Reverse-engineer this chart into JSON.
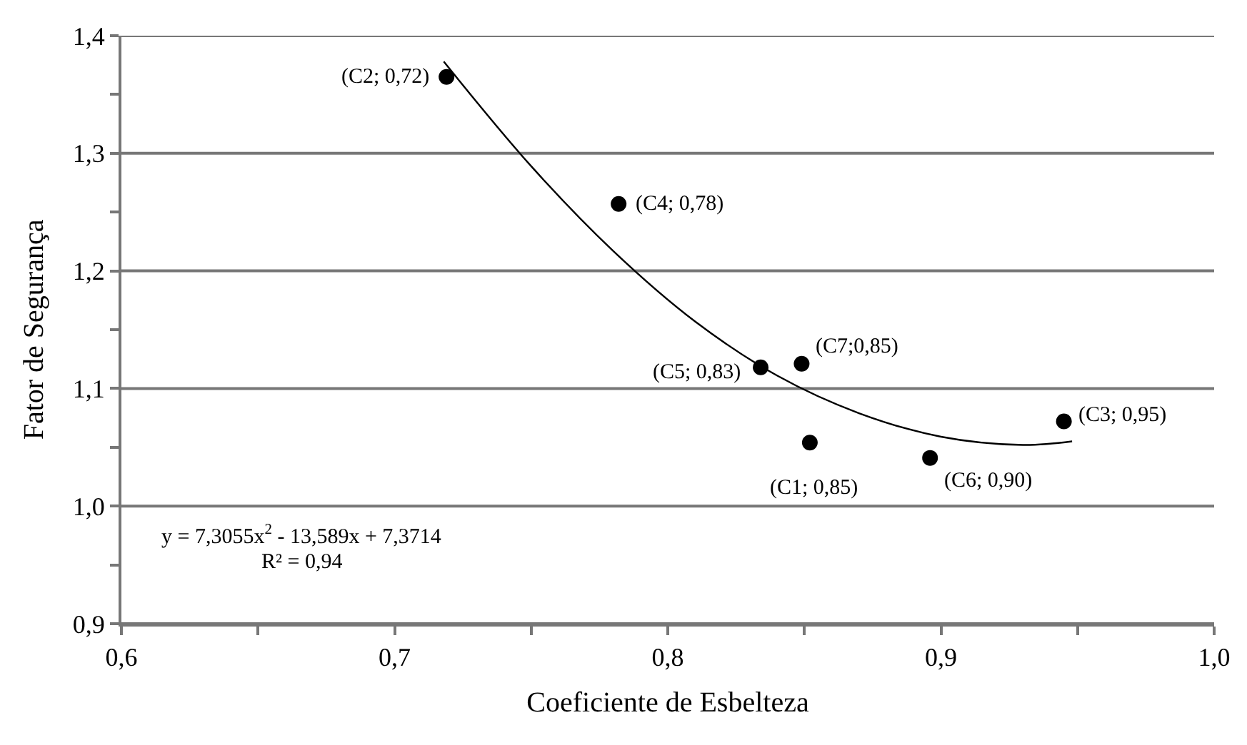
{
  "chart_data": {
    "type": "scatter",
    "xlabel": "Coeficiente de Esbelteza",
    "ylabel": "Fator de Segurança",
    "xlim": [
      0.6,
      1.0
    ],
    "ylim": [
      0.9,
      1.4
    ],
    "xticks": [
      {
        "value": 0.6,
        "label": "0,6"
      },
      {
        "value": 0.65,
        "label": null
      },
      {
        "value": 0.7,
        "label": "0,7"
      },
      {
        "value": 0.75,
        "label": null
      },
      {
        "value": 0.8,
        "label": "0,8"
      },
      {
        "value": 0.85,
        "label": null
      },
      {
        "value": 0.9,
        "label": "0,9"
      },
      {
        "value": 0.95,
        "label": null
      },
      {
        "value": 1.0,
        "label": "1,0"
      }
    ],
    "yticks": [
      {
        "value": 0.9,
        "label": "0,9"
      },
      {
        "value": 0.95,
        "label": null
      },
      {
        "value": 1.0,
        "label": "1,0"
      },
      {
        "value": 1.05,
        "label": null
      },
      {
        "value": 1.1,
        "label": "1,1"
      },
      {
        "value": 1.15,
        "label": null
      },
      {
        "value": 1.2,
        "label": "1,2"
      },
      {
        "value": 1.25,
        "label": null
      },
      {
        "value": 1.3,
        "label": "1,3"
      },
      {
        "value": 1.35,
        "label": null
      },
      {
        "value": 1.4,
        "label": "1,4"
      }
    ],
    "grid": "y",
    "series": [
      {
        "marker": "circle",
        "color": "#000000",
        "x": [
          0.719,
          0.782,
          0.834,
          0.849,
          0.852,
          0.896,
          0.945
        ],
        "values": [
          1.365,
          1.257,
          1.118,
          1.121,
          1.054,
          1.041,
          1.072
        ]
      },
      {
        "type": "line",
        "marker": "none",
        "color": "#000000",
        "x": [
          0.718,
          0.75,
          0.78,
          0.81,
          0.84,
          0.87,
          0.9,
          0.93,
          0.948
        ],
        "values": [
          1.378,
          1.289,
          1.217,
          1.157,
          1.111,
          1.079,
          1.059,
          1.052,
          1.055
        ]
      }
    ],
    "annotations": [
      {
        "text": "(C2; 0,72)",
        "x": 0.719,
        "y": 1.365
      },
      {
        "text": "(C4; 0,78)",
        "x": 0.782,
        "y": 1.257
      },
      {
        "text": "(C5; 0,83)",
        "x": 0.834,
        "y": 1.118
      },
      {
        "text": "(C7;0,85)",
        "x": 0.849,
        "y": 1.121
      },
      {
        "text": "(C1; 0,85)",
        "x": 0.852,
        "y": 1.054
      },
      {
        "text": "(C6; 0,90)",
        "x": 0.896,
        "y": 1.041
      },
      {
        "text": "(C3; 0,95)",
        "x": 0.945,
        "y": 1.072
      },
      "y = 7,3055x$^{2}$ - 13,589x + 7,3714",
      "R² = 0,94"
    ]
  }
}
